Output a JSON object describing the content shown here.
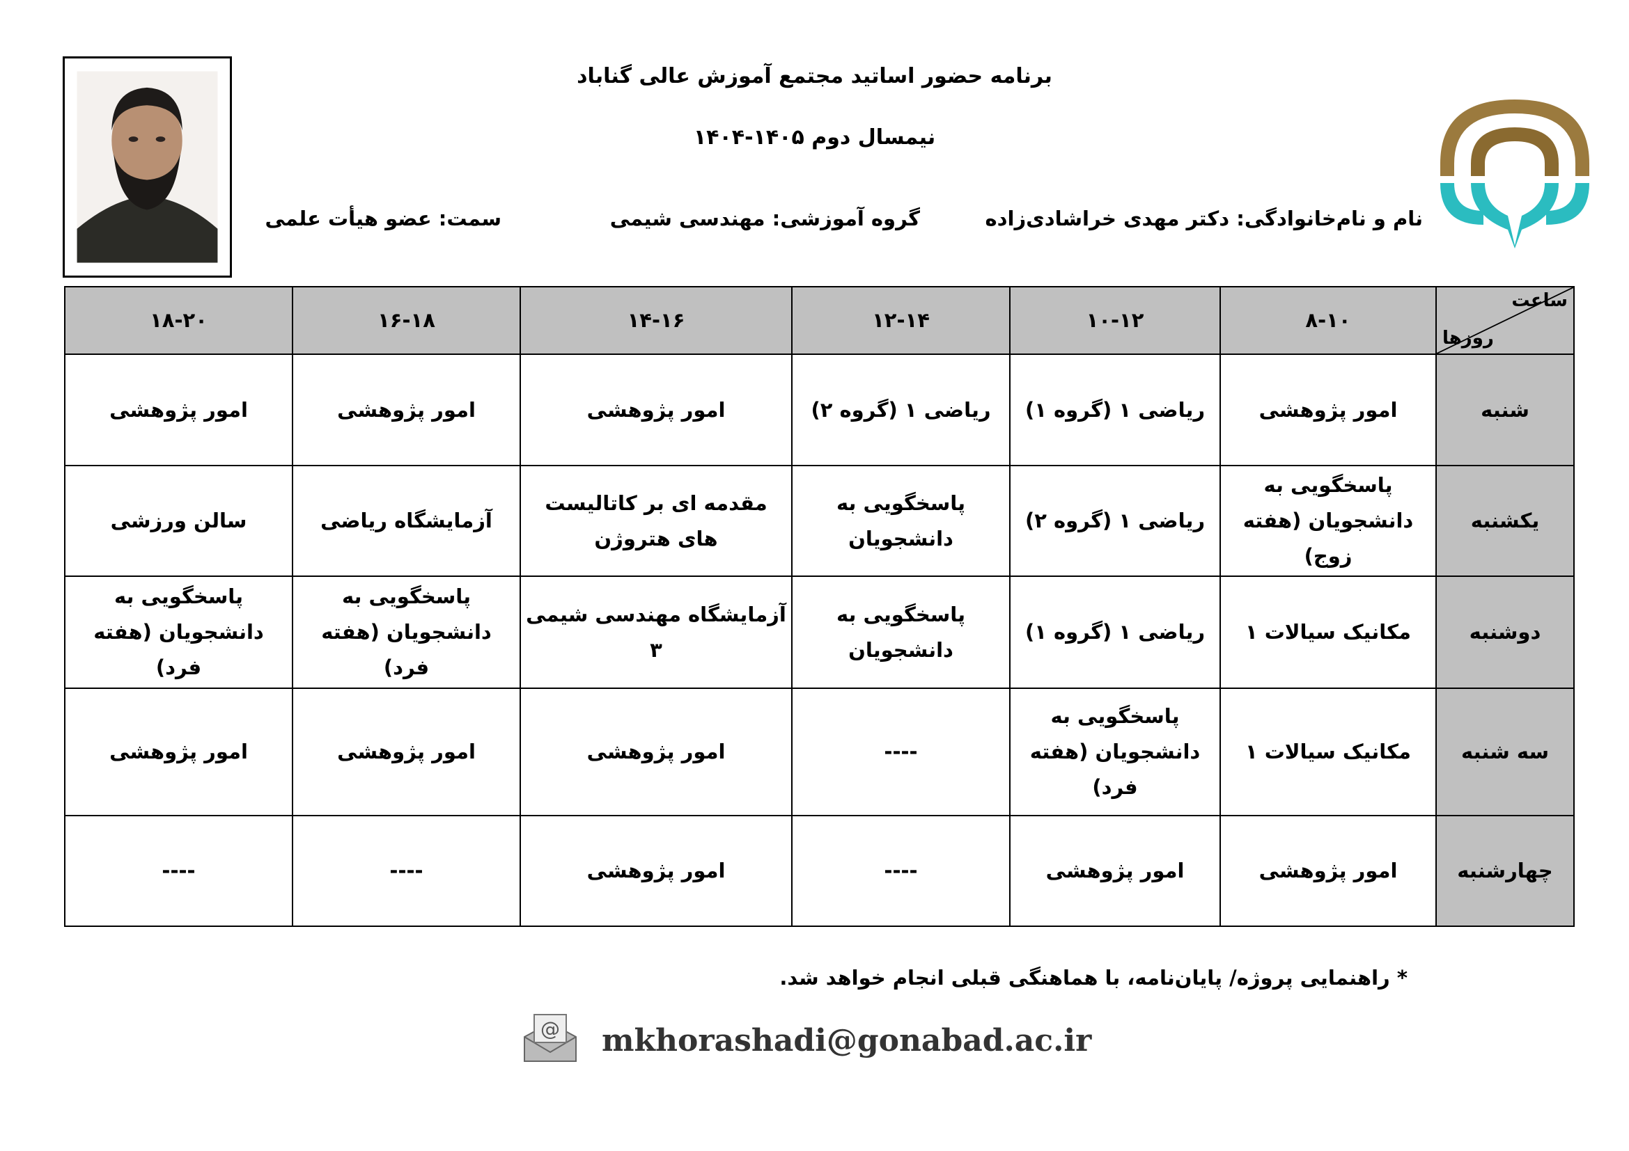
{
  "header": {
    "title": "برنامه حضور اساتید مجتمع آموزش عالی گناباد",
    "semester": "نیمسال دوم ۱۴۰۵-۱۴۰۴",
    "name": "نام و نام‌خانوادگی: دکتر مهدی خراشادی‌زاده",
    "department": "گروه آموزشی: مهندسی شیمی",
    "position": "سمت: عضو هیأت علمی"
  },
  "colors": {
    "header_fill": "#c0c0c0",
    "logo_gold": "#9b7a3e",
    "logo_teal": "#2bbcc0"
  },
  "table": {
    "corner_hour": "ساعت",
    "corner_days": "روزها",
    "columns": [
      "۸-۱۰",
      "۱۰-۱۲",
      "۱۲-۱۴",
      "۱۴-۱۶",
      "۱۶-۱۸",
      "۱۸-۲۰"
    ],
    "rows": [
      {
        "day": "شنبه",
        "cells": [
          "امور پژوهشی",
          "ریاضی ۱ (گروه ۱)",
          "ریاضی ۱ (گروه ۲)",
          "امور پژوهشی",
          "امور پژوهشی",
          "امور پژوهشی"
        ]
      },
      {
        "day": "یکشنبه",
        "cells": [
          "پاسخگویی به دانشجویان (هفته زوج)",
          "ریاضی ۱ (گروه ۲)",
          "پاسخگویی به دانشجویان",
          "مقدمه ای بر کاتالیست های هتروژن",
          "آزمایشگاه ریاضی",
          "سالن ورزشی"
        ]
      },
      {
        "day": "دوشنبه",
        "cells": [
          "مکانیک سیالات ۱",
          "ریاضی ۱ (گروه ۱)",
          "پاسخگویی به دانشجویان",
          "آزمایشگاه مهندسی شیمی ۳",
          "پاسخگویی به دانشجویان (هفته فرد)",
          "پاسخگویی به دانشجویان (هفته فرد)"
        ]
      },
      {
        "day": "سه شنبه",
        "cells": [
          "مکانیک سیالات ۱",
          "پاسخگویی به دانشجویان (هفته فرد)",
          "----",
          "امور پژوهشی",
          "امور پژوهشی",
          "امور پژوهشی"
        ]
      },
      {
        "day": "چهارشنبه",
        "cells": [
          "امور پژوهشی",
          "امور پژوهشی",
          "----",
          "امور پژوهشی",
          "----",
          "----"
        ]
      }
    ]
  },
  "footer": {
    "note": "* راهنمایی پروژه/ پایان‌نامه، با هماهنگی قبلی انجام خواهد شد.",
    "email": "mkhorashadi@gonabad.ac.ir"
  }
}
